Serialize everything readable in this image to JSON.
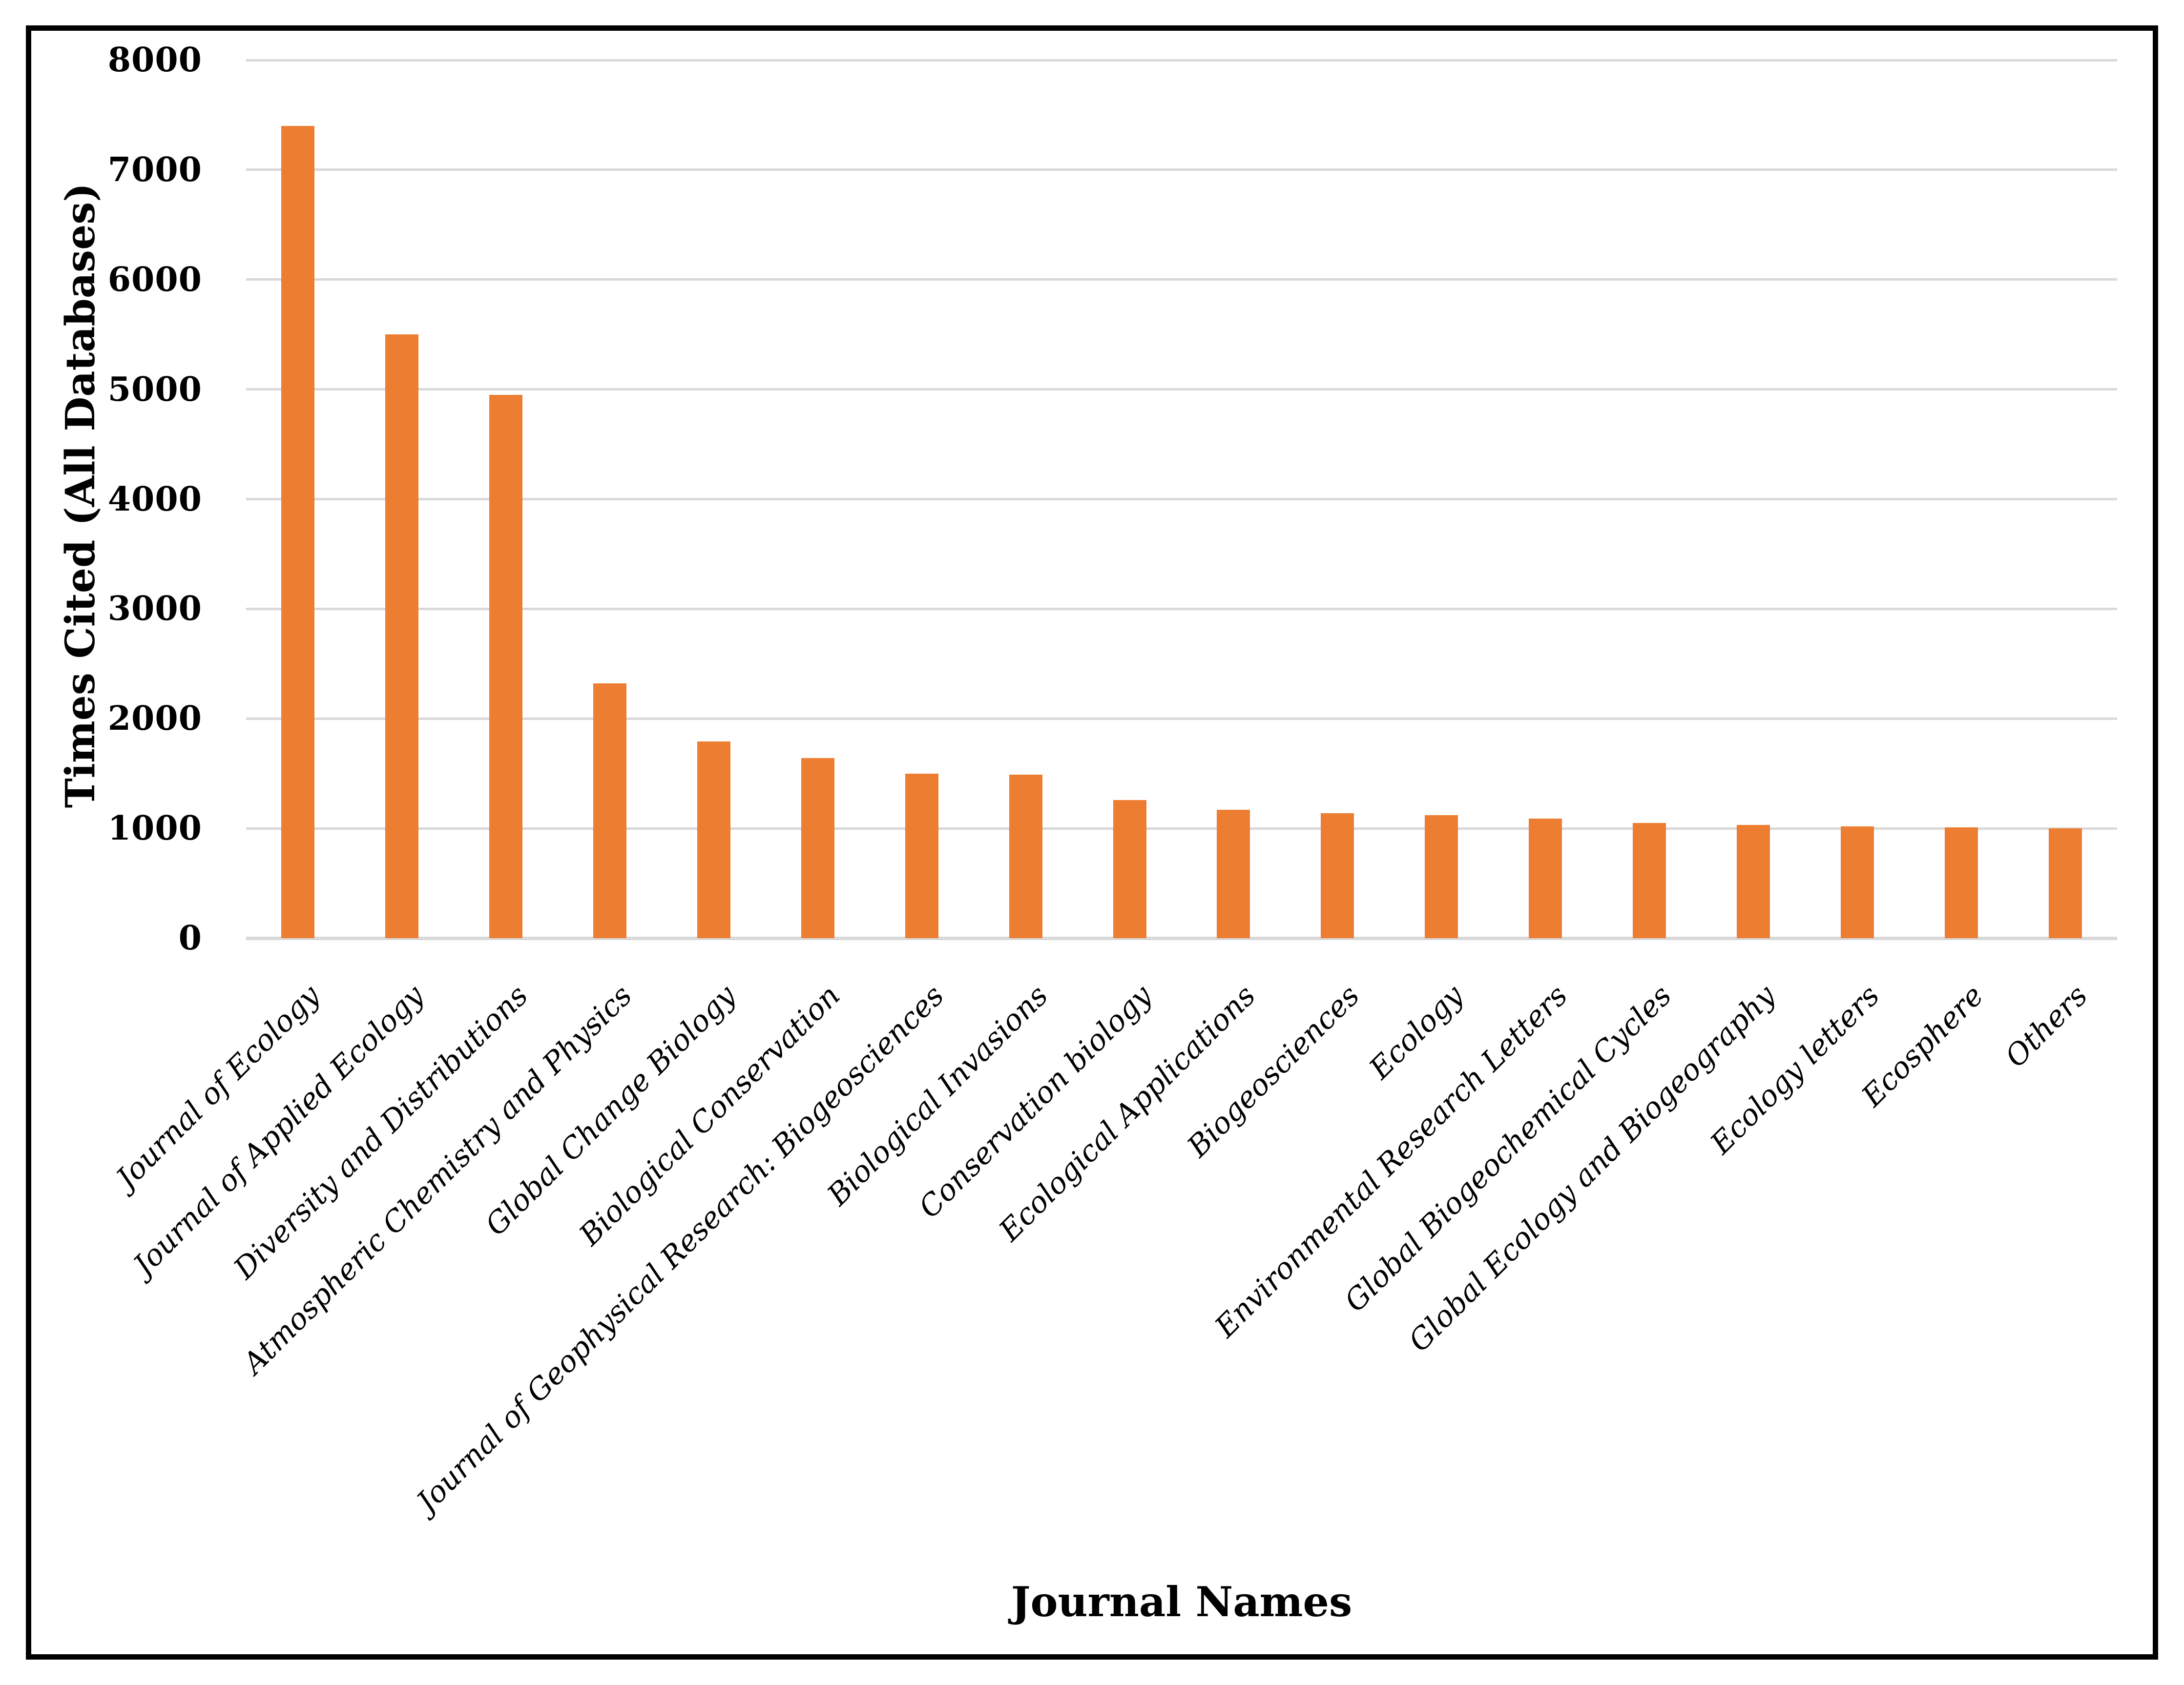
{
  "chart_data": {
    "type": "bar",
    "title": "",
    "xlabel": "Journal Names",
    "ylabel": "Times Cited (All Databases)",
    "categories": [
      "Journal of Ecology",
      "Journal of Applied Ecology",
      "Diversity and Distributions",
      "Atmospheric Chemistry and Physics",
      "Global Change Biology",
      "Biological Conservation",
      "Journal of Geophysical Research: Biogeosciences",
      "Biological Invasions",
      "Conservation biology",
      "Ecological Applications",
      "Biogeosciences",
      "Ecology",
      "Environmental Research Letters",
      "Global Biogeochemical Cycles",
      "Global Ecology and Biogeography",
      "Ecology letters",
      "Ecosphere",
      "Others"
    ],
    "values": [
      7400,
      5500,
      4950,
      2320,
      1790,
      1640,
      1500,
      1490,
      1260,
      1170,
      1140,
      1120,
      1090,
      1050,
      1030,
      1020,
      1010,
      1000
    ],
    "ylim": [
      0,
      8000
    ],
    "yticks": [
      0,
      1000,
      2000,
      3000,
      4000,
      5000,
      6000,
      7000,
      8000
    ],
    "grid": true,
    "legend": false,
    "bar_color": "#ED7D31",
    "grid_color": "#D9D9D9",
    "frame_color": "#000000",
    "text_color": "#000000"
  }
}
